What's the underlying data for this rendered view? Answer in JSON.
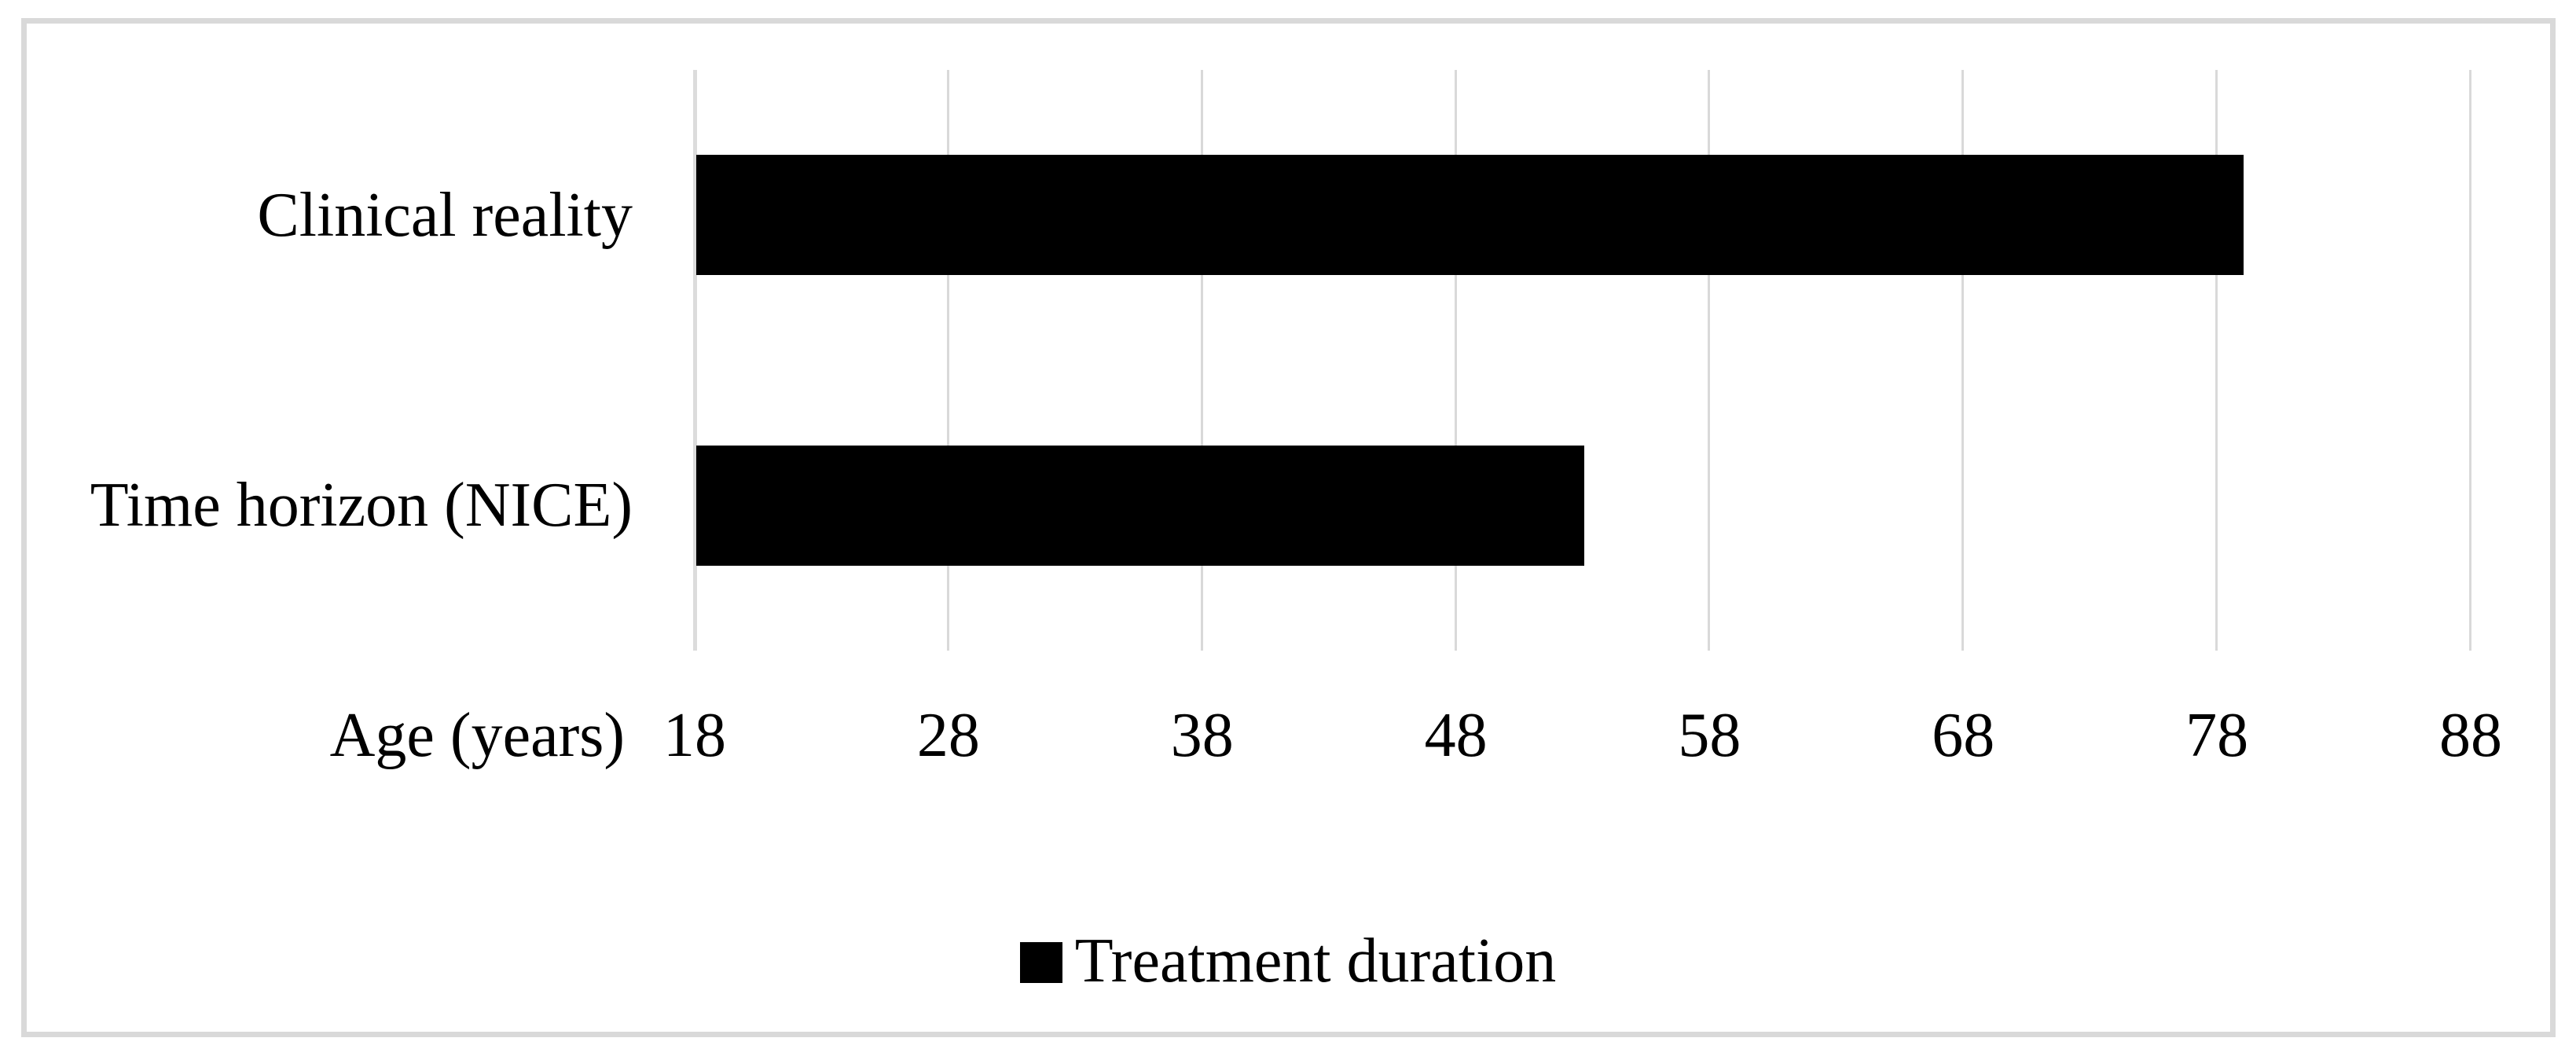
{
  "chart_data": {
    "type": "bar",
    "orientation": "horizontal",
    "categories": [
      "Clinical reality",
      "Time horizon (NICE)"
    ],
    "series": [
      {
        "name": "Treatment duration",
        "values": [
          79,
          53
        ]
      }
    ],
    "bar_base": 18,
    "xlabel": "Age (years)",
    "x_ticks": [
      "18",
      "28",
      "38",
      "48",
      "58",
      "68",
      "78",
      "88"
    ],
    "xlim": [
      18,
      88
    ],
    "grid": "vertical-gridlines-on",
    "legend_position": "bottom-center",
    "title": "",
    "bar_color": "#000000",
    "gridline_color": "#d9d9d9",
    "axis_line_color": "#dcdcdc",
    "frame_color": "#d9d9d9",
    "text_color": "#000000"
  },
  "legend": {
    "marker": "black-square",
    "label": "Treatment duration"
  }
}
